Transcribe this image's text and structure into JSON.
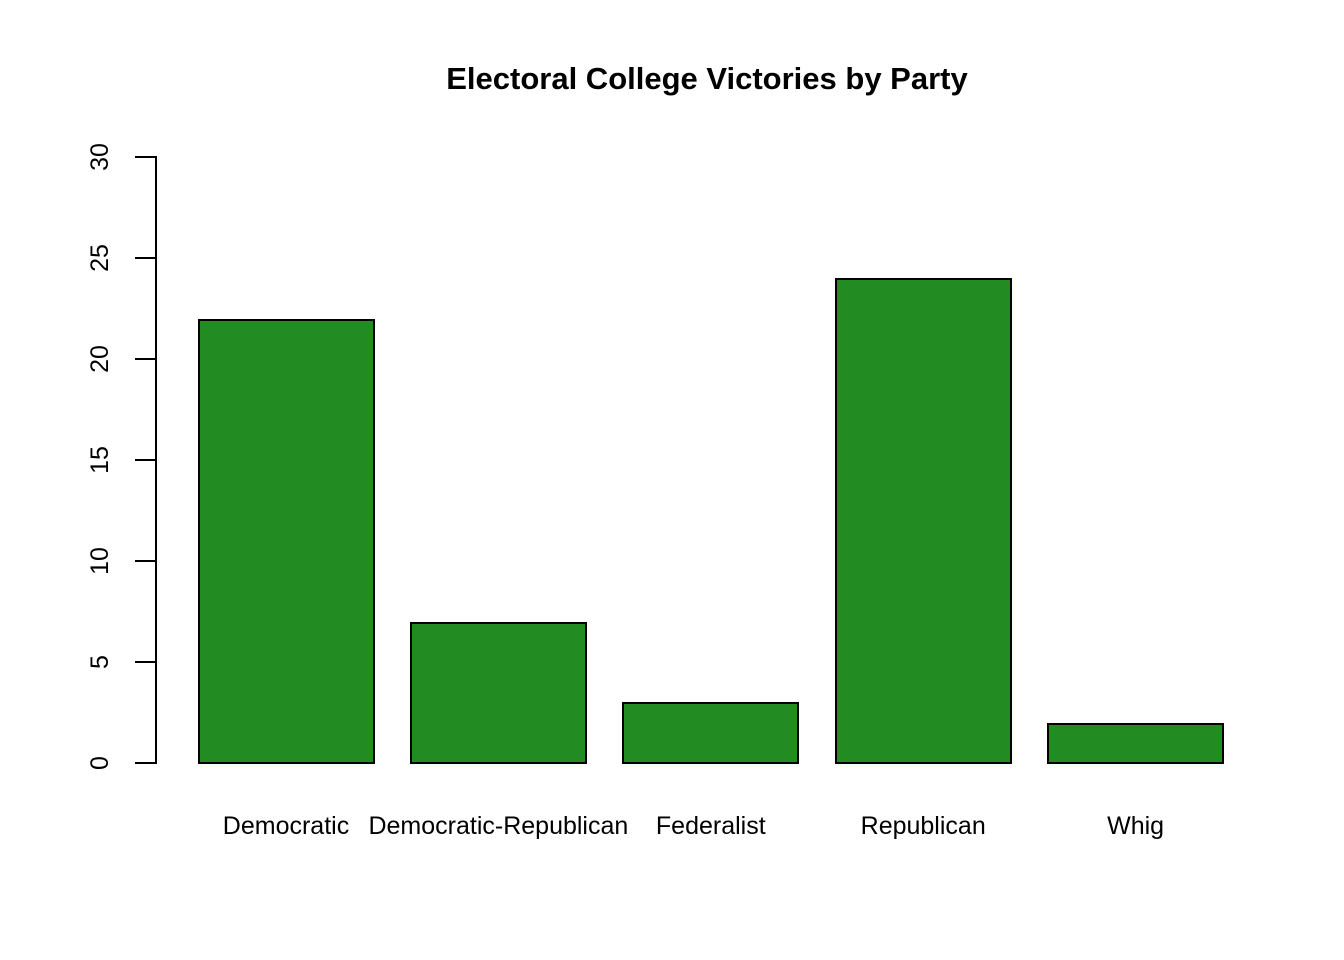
{
  "title": "Electoral College Victories by Party",
  "chart_data": {
    "type": "bar",
    "title": "Electoral College Victories by Party",
    "categories": [
      "Democratic",
      "Democratic-Republican",
      "Federalist",
      "Republican",
      "Whig"
    ],
    "values": [
      22,
      7,
      3,
      24,
      2
    ],
    "xlabel": "",
    "ylabel": "",
    "ylim": [
      0,
      30
    ],
    "yticks": [
      0,
      5,
      10,
      15,
      20,
      25,
      30
    ],
    "bar_fill_color": "#228B22",
    "bar_border_color": "#000000",
    "axis_color": "#000000",
    "background_color": "#ffffff",
    "grid": false,
    "legend_position": "none"
  }
}
